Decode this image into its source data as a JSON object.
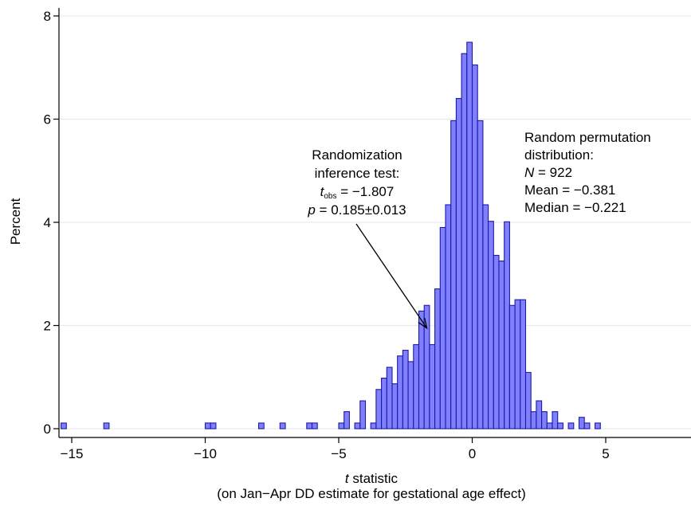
{
  "chart_data": {
    "type": "bar",
    "subtype": "histogram",
    "xlabel_var": "t",
    "xlabel_rest": " statistic",
    "xlabel_line2": "(on Jan−Apr DD estimate for gestational age effect)",
    "ylabel": "Percent",
    "xlim": [
      -16,
      8
    ],
    "ylim": [
      0,
      8
    ],
    "xticks": [
      -15,
      -10,
      -5,
      0,
      5
    ],
    "xtick_labels": [
      "−15",
      "−10",
      "−5",
      "0",
      "5"
    ],
    "yticks": [
      0,
      2,
      4,
      6,
      8
    ],
    "ytick_labels": [
      "0",
      "2",
      "4",
      "6",
      "8"
    ],
    "grid": "horizontal",
    "bar_fill": "#8080ff",
    "bar_stroke": "#1a1aa6",
    "bin_width": 0.2,
    "bins": [
      {
        "x": -15.3,
        "y": 0.11
      },
      {
        "x": -13.7,
        "y": 0.11
      },
      {
        "x": -9.9,
        "y": 0.11
      },
      {
        "x": -9.7,
        "y": 0.11
      },
      {
        "x": -7.9,
        "y": 0.11
      },
      {
        "x": -7.1,
        "y": 0.11
      },
      {
        "x": -6.1,
        "y": 0.11
      },
      {
        "x": -5.9,
        "y": 0.11
      },
      {
        "x": -4.9,
        "y": 0.11
      },
      {
        "x": -4.7,
        "y": 0.33
      },
      {
        "x": -4.3,
        "y": 0.11
      },
      {
        "x": -4.1,
        "y": 0.54
      },
      {
        "x": -3.7,
        "y": 0.11
      },
      {
        "x": -3.5,
        "y": 0.76
      },
      {
        "x": -3.3,
        "y": 0.98
      },
      {
        "x": -3.1,
        "y": 1.19
      },
      {
        "x": -2.9,
        "y": 0.87
      },
      {
        "x": -2.7,
        "y": 1.41
      },
      {
        "x": -2.5,
        "y": 1.52
      },
      {
        "x": -2.3,
        "y": 1.3
      },
      {
        "x": -2.1,
        "y": 1.63
      },
      {
        "x": -1.9,
        "y": 2.28
      },
      {
        "x": -1.7,
        "y": 2.39
      },
      {
        "x": -1.5,
        "y": 1.63
      },
      {
        "x": -1.3,
        "y": 2.71
      },
      {
        "x": -1.1,
        "y": 3.9
      },
      {
        "x": -0.9,
        "y": 4.34
      },
      {
        "x": -0.7,
        "y": 5.97
      },
      {
        "x": -0.5,
        "y": 6.4
      },
      {
        "x": -0.3,
        "y": 7.27
      },
      {
        "x": -0.1,
        "y": 7.49
      },
      {
        "x": 0.1,
        "y": 7.05
      },
      {
        "x": 0.3,
        "y": 5.97
      },
      {
        "x": 0.5,
        "y": 4.34
      },
      {
        "x": 0.7,
        "y": 4.02
      },
      {
        "x": 0.9,
        "y": 3.36
      },
      {
        "x": 1.1,
        "y": 3.25
      },
      {
        "x": 1.3,
        "y": 4.01
      },
      {
        "x": 1.5,
        "y": 2.39
      },
      {
        "x": 1.7,
        "y": 2.5
      },
      {
        "x": 1.9,
        "y": 2.5
      },
      {
        "x": 2.1,
        "y": 1.09
      },
      {
        "x": 2.3,
        "y": 0.33
      },
      {
        "x": 2.5,
        "y": 0.54
      },
      {
        "x": 2.7,
        "y": 0.33
      },
      {
        "x": 2.9,
        "y": 0.11
      },
      {
        "x": 3.1,
        "y": 0.33
      },
      {
        "x": 3.3,
        "y": 0.11
      },
      {
        "x": 3.7,
        "y": 0.11
      },
      {
        "x": 4.1,
        "y": 0.22
      },
      {
        "x": 4.3,
        "y": 0.11
      },
      {
        "x": 4.7,
        "y": 0.11
      }
    ],
    "annotation_left": {
      "line1": "Randomization",
      "line2": "inference test:",
      "t_sym": "t",
      "t_sub": "obs",
      "t_value": " = −1.807",
      "p_sym": "p",
      "p_value": " = 0.185±0.013",
      "arrow_target": {
        "x": -1.7,
        "y": 1.95
      }
    },
    "annotation_right": {
      "line1": "Random permutation",
      "line2": "distribution:",
      "n_sym": "N",
      "n_value": " = 922",
      "mean": "Mean = −0.381",
      "median": "Median = −0.221"
    }
  }
}
